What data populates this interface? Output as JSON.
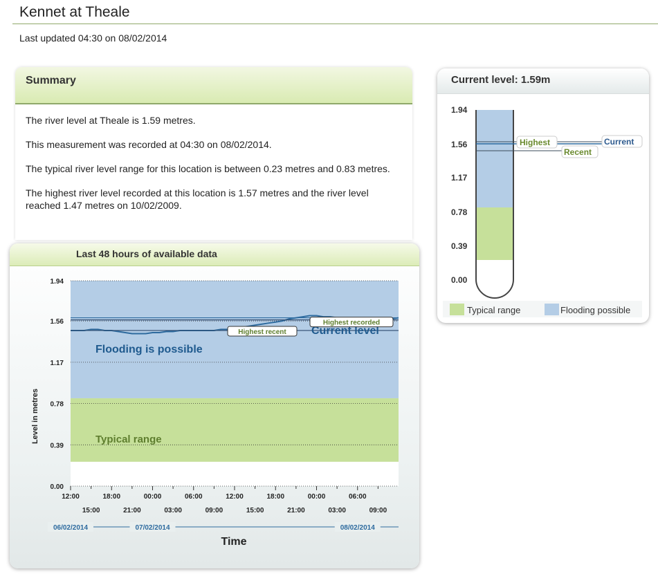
{
  "page": {
    "title": "Kennet at Theale",
    "last_updated": "Last updated 04:30 on 08/02/2014"
  },
  "summary": {
    "heading": "Summary",
    "lines": [
      "The river level at Theale is 1.59 metres.",
      "This measurement was recorded at 04:30 on 08/02/2014.",
      "The typical river level range for this location is between 0.23 metres and 0.83 metres.",
      "The highest river level recorded at this location is 1.57 metres and the river level reached 1.47 metres on 10/02/2009."
    ]
  },
  "gauge": {
    "title": "Current level: 1.59m",
    "ticks": [
      "1.94",
      "1.56",
      "1.17",
      "0.78",
      "0.39",
      "0.00"
    ],
    "labels": {
      "highest": "Highest",
      "recent": "Recent",
      "current": "Current"
    },
    "legend": {
      "typical": "Typical range",
      "flooding": "Flooding possible"
    },
    "colors": {
      "flooding": "#b4cde6",
      "typical": "#c6e09a"
    }
  },
  "chart_data": {
    "type": "line",
    "title": "Last 48 hours of available data",
    "xlabel": "Time",
    "ylabel": "Level in metres",
    "ylim": [
      0,
      1.94
    ],
    "y_ticks": [
      "1.94",
      "1.56",
      "1.17",
      "0.78",
      "0.39",
      "0.00"
    ],
    "x_ticks_top": [
      "12:00",
      "18:00",
      "00:00",
      "06:00",
      "12:00",
      "18:00",
      "00:00",
      "06:00"
    ],
    "x_ticks_bottom": [
      "15:00",
      "21:00",
      "03:00",
      "09:00",
      "15:00",
      "21:00",
      "03:00",
      "09:00"
    ],
    "dates": [
      "06/02/2014",
      "07/02/2014",
      "08/02/2014"
    ],
    "typical_range": [
      0.23,
      0.83
    ],
    "flooding_label": "Flooding is possible",
    "typical_label": "Typical range",
    "reference_lines": {
      "highest_recorded": 1.57,
      "highest_recent": 1.47,
      "current": 1.59
    },
    "reference_labels": {
      "highest_recent": "Highest recent",
      "highest_recorded": "Highest recorded",
      "current": "Current level"
    },
    "series": [
      {
        "x": [
          0,
          1,
          2,
          3,
          4,
          5,
          6,
          7,
          8,
          9,
          10,
          11,
          12,
          13,
          14,
          15,
          16,
          17,
          18,
          19,
          20,
          21,
          22,
          23,
          24,
          25,
          26,
          27,
          28,
          29,
          30,
          31,
          32,
          33,
          34,
          35,
          36,
          37,
          38,
          39,
          40,
          41,
          42,
          43,
          44,
          45,
          46,
          47,
          48
        ],
        "values": [
          1.47,
          1.47,
          1.47,
          1.48,
          1.48,
          1.47,
          1.47,
          1.46,
          1.45,
          1.44,
          1.44,
          1.44,
          1.45,
          1.45,
          1.46,
          1.46,
          1.47,
          1.47,
          1.47,
          1.47,
          1.47,
          1.47,
          1.48,
          1.48,
          1.49,
          1.5,
          1.51,
          1.52,
          1.53,
          1.54,
          1.55,
          1.56,
          1.58,
          1.59,
          1.6,
          1.61,
          1.61,
          1.6,
          1.6,
          1.59,
          1.58,
          1.57,
          1.56,
          1.56,
          1.56,
          1.57,
          1.57,
          1.58,
          1.59
        ]
      }
    ],
    "colors": {
      "flooding": "#b4cde6",
      "typical": "#c6e09a",
      "line": "#2d6a9e",
      "label_blue": "#1f5a8e",
      "label_green": "#5e7e2e"
    }
  }
}
